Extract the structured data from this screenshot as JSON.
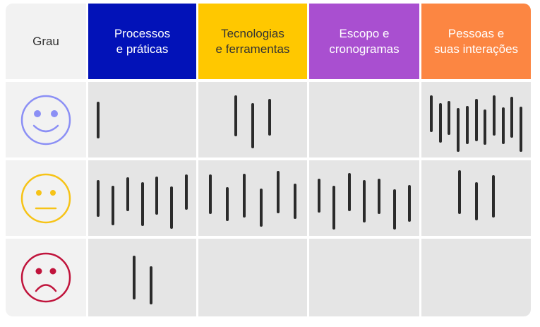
{
  "header": {
    "grade_label": "Grau",
    "columns": [
      {
        "label": "Processos\ne práticas",
        "bg": "#0212b8",
        "fg": "#ffffff"
      },
      {
        "label": "Tecnologias\ne ferramentas",
        "bg": "#ffc800",
        "fg": "#333333"
      },
      {
        "label": "Escopo e\ncronogramas",
        "bg": "#a94fd0",
        "fg": "#ffffff"
      },
      {
        "label": "Pessoas e\nsuas interações",
        "bg": "#fc8642",
        "fg": "#ffffff"
      }
    ]
  },
  "rows": [
    {
      "face": "happy-face-icon",
      "color": "#8b8ff5",
      "tallies": [
        1,
        3,
        0,
        11
      ]
    },
    {
      "face": "neutral-face-icon",
      "color": "#f6c317",
      "tallies": [
        7,
        6,
        7,
        3
      ]
    },
    {
      "face": "sad-face-icon",
      "color": "#c0143c",
      "tallies": [
        2,
        0,
        0,
        0
      ]
    }
  ],
  "colors": {
    "tally": "#2b2b2b"
  }
}
